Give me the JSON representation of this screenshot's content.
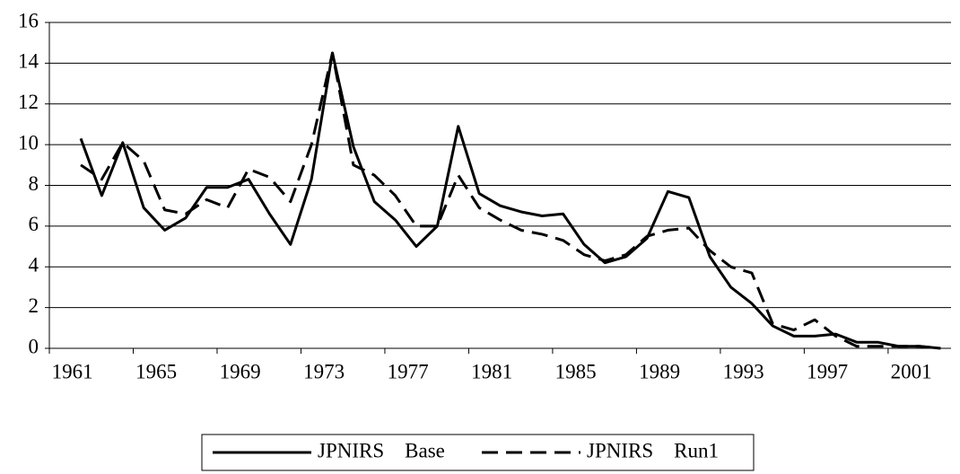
{
  "chart_data": {
    "type": "line",
    "categories": [
      "1961",
      null,
      null,
      null,
      "1965",
      null,
      null,
      null,
      "1969",
      null,
      null,
      null,
      "1973",
      null,
      null,
      null,
      "1977",
      null,
      null,
      null,
      "1981",
      null,
      null,
      null,
      "1985",
      null,
      null,
      null,
      "1989",
      null,
      null,
      null,
      "1993",
      null,
      null,
      null,
      "1997",
      null,
      null,
      null,
      "2001",
      null,
      null
    ],
    "series": [
      {
        "name": "JPNIRS    Base",
        "color": "#000000",
        "dash": "solid",
        "values": [
          null,
          10.3,
          7.5,
          10.1,
          6.9,
          5.8,
          6.4,
          7.9,
          7.9,
          8.3,
          6.6,
          5.1,
          8.3,
          14.5,
          9.9,
          7.2,
          6.3,
          5.0,
          6.0,
          10.9,
          7.6,
          7.0,
          6.7,
          6.5,
          6.6,
          5.1,
          4.2,
          4.5,
          5.4,
          7.7,
          7.4,
          4.5,
          3.0,
          2.2,
          1.1,
          0.6,
          0.6,
          0.7,
          0.3,
          0.3,
          0.1,
          0.1,
          0.0
        ]
      },
      {
        "name": "JPNIRS    Run1",
        "color": "#000000",
        "dash": "dashed",
        "values": [
          null,
          9.0,
          8.3,
          10.1,
          9.2,
          6.8,
          6.6,
          7.3,
          6.9,
          8.8,
          8.4,
          7.2,
          10.0,
          14.5,
          9.0,
          8.5,
          7.5,
          6.0,
          6.0,
          8.5,
          6.9,
          6.3,
          5.8,
          5.6,
          5.3,
          4.6,
          4.3,
          4.6,
          5.5,
          5.8,
          5.9,
          4.8,
          4.0,
          3.7,
          1.2,
          0.9,
          1.4,
          0.6,
          0.1,
          0.1,
          0.1,
          0.1,
          0.0
        ]
      }
    ],
    "ylim": [
      0,
      16
    ],
    "yticks": [
      0,
      2,
      4,
      6,
      8,
      10,
      12,
      14,
      16
    ],
    "grid": true,
    "legend": "bottom"
  }
}
